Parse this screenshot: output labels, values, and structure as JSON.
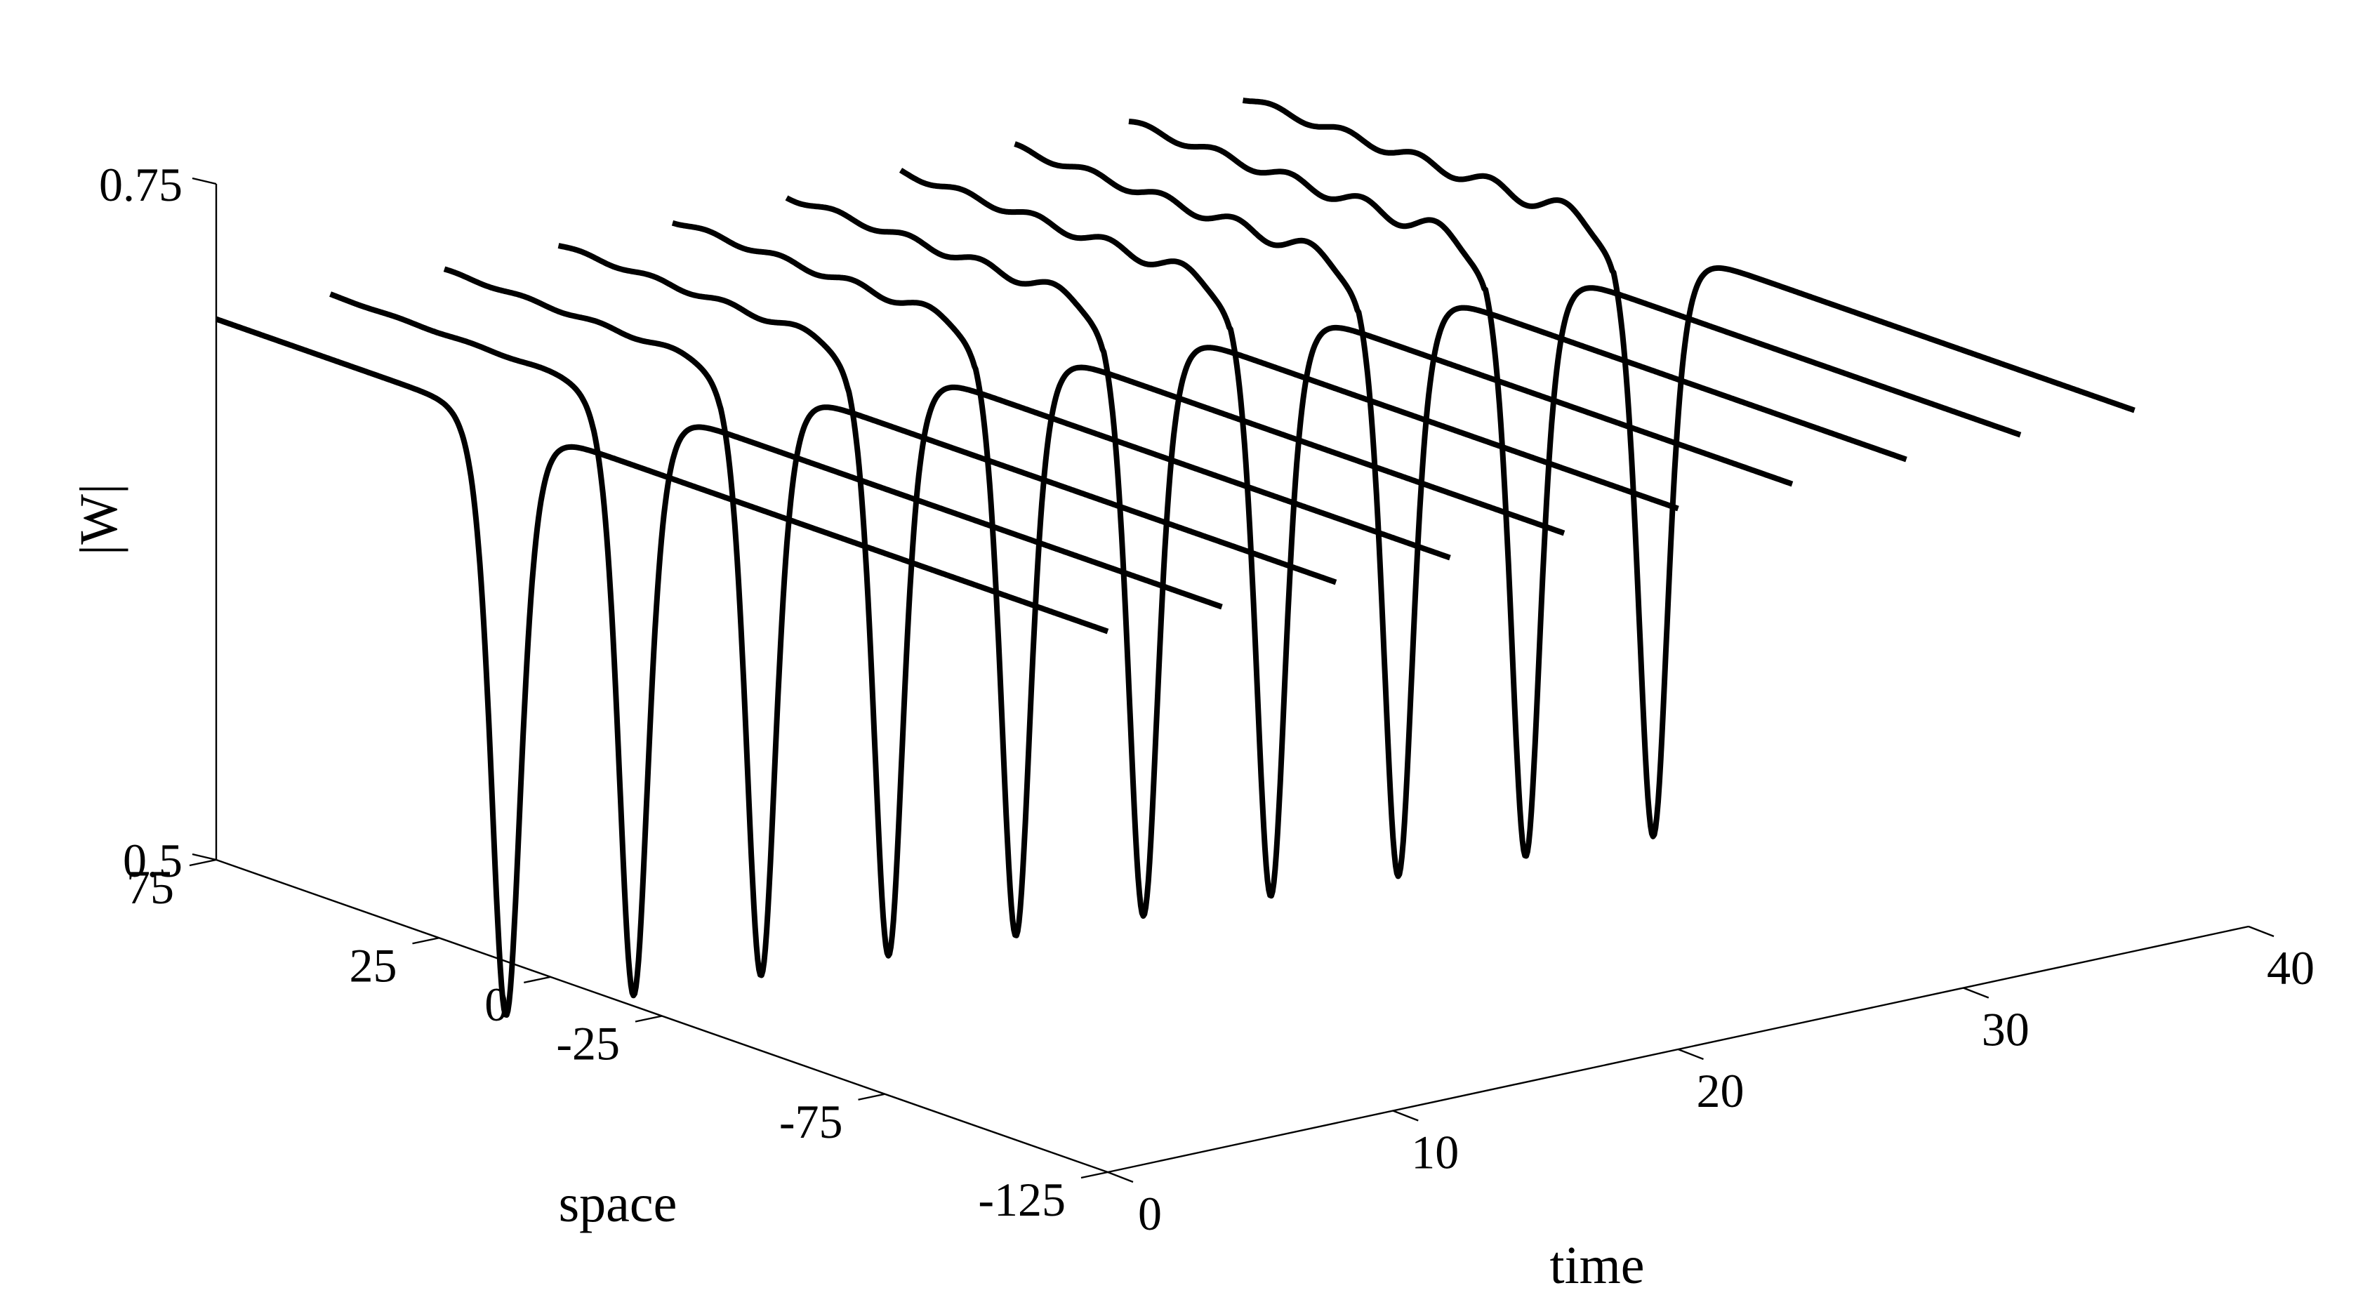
{
  "chart_data": {
    "type": "line",
    "subtype": "3d-waterfall",
    "title": "",
    "xlabel": "time",
    "ylabel": "space",
    "zlabel": "|W|",
    "xlim": [
      0,
      40
    ],
    "ylim": [
      -125,
      75
    ],
    "zlim": [
      0.5,
      0.75
    ],
    "xticks": [
      0,
      10,
      20,
      30,
      40
    ],
    "xtick_labels": [
      "0",
      "10",
      "20",
      "30",
      "40"
    ],
    "yticks": [
      75,
      25,
      0,
      -25,
      -75,
      -125
    ],
    "ytick_labels": [
      "75",
      "25",
      "0",
      "-25",
      "-75",
      "-125"
    ],
    "zticks": [
      0.5,
      0.75
    ],
    "ztick_labels": [
      "0.5",
      "0.75"
    ],
    "grid": false,
    "color": "#000000",
    "profile": {
      "background": 0.7,
      "dip_minimum": 0.48,
      "dip_width": 4.5,
      "ripple_amplitude": 0.004
    },
    "series": [
      {
        "time": 0,
        "dip_center": 10.0,
        "ripple": 0.0
      },
      {
        "time": 4,
        "dip_center": 7.0,
        "ripple": 0.1
      },
      {
        "time": 8,
        "dip_center": 4.0,
        "ripple": 0.25
      },
      {
        "time": 12,
        "dip_center": 1.0,
        "ripple": 0.4
      },
      {
        "time": 16,
        "dip_center": -2.0,
        "ripple": 0.55
      },
      {
        "time": 20,
        "dip_center": -5.0,
        "ripple": 0.7
      },
      {
        "time": 24,
        "dip_center": -8.0,
        "ripple": 0.8
      },
      {
        "time": 28,
        "dip_center": -11.0,
        "ripple": 0.9
      },
      {
        "time": 32,
        "dip_center": -14.0,
        "ripple": 1.0
      },
      {
        "time": 36,
        "dip_center": -17.0,
        "ripple": 1.0
      }
    ]
  }
}
